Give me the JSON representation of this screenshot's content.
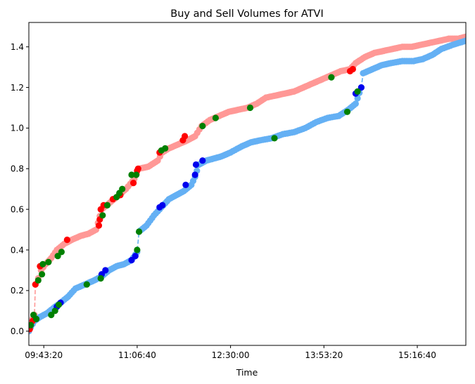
{
  "chart_data": {
    "type": "scatter",
    "title": "Buy and Sell Volumes for ATVI",
    "xlabel": "Time",
    "ylabel": "",
    "x_tick_labels": [
      "09:43:20",
      "11:06:40",
      "12:30:00",
      "13:53:20",
      "15:16:40"
    ],
    "x_tick_values_seconds": [
      35000,
      40000,
      45000,
      50000,
      55000
    ],
    "xlim_seconds": [
      34200,
      57600
    ],
    "y_ticks": [
      0.0,
      0.2,
      0.4,
      0.6,
      0.8,
      1.0,
      1.2,
      1.4
    ],
    "ylim": [
      -0.07,
      1.52
    ],
    "grid": false,
    "colors": {
      "sell_line": "#ff9896",
      "buy_line": "#64b0f4",
      "sell_large": "#ff0000",
      "buy_large": "#0000ee",
      "marked": "#008000"
    },
    "series": [
      {
        "role": "sell",
        "style": "dashed-with-markers",
        "points": [
          [
            34200,
            0.0
          ],
          [
            34300,
            0.03
          ],
          [
            34400,
            0.06
          ],
          [
            34500,
            0.08
          ],
          [
            34550,
            0.23
          ],
          [
            34700,
            0.26
          ],
          [
            34850,
            0.3
          ],
          [
            35100,
            0.33
          ],
          [
            35400,
            0.36
          ],
          [
            35700,
            0.4
          ],
          [
            36100,
            0.43
          ],
          [
            36500,
            0.45
          ],
          [
            37000,
            0.47
          ],
          [
            37400,
            0.48
          ],
          [
            37800,
            0.5
          ],
          [
            38100,
            0.6
          ],
          [
            38500,
            0.63
          ],
          [
            38900,
            0.66
          ],
          [
            39400,
            0.7
          ],
          [
            39850,
            0.75
          ],
          [
            40100,
            0.8
          ],
          [
            40600,
            0.81
          ],
          [
            41100,
            0.84
          ],
          [
            41350,
            0.88
          ],
          [
            41700,
            0.9
          ],
          [
            42200,
            0.92
          ],
          [
            42700,
            0.94
          ],
          [
            43100,
            0.96
          ],
          [
            43450,
            1.01
          ],
          [
            43900,
            1.04
          ],
          [
            44400,
            1.06
          ],
          [
            44900,
            1.08
          ],
          [
            45400,
            1.09
          ],
          [
            45900,
            1.1
          ],
          [
            46400,
            1.12
          ],
          [
            46900,
            1.15
          ],
          [
            47400,
            1.16
          ],
          [
            47900,
            1.17
          ],
          [
            48400,
            1.18
          ],
          [
            48900,
            1.2
          ],
          [
            49400,
            1.22
          ],
          [
            49900,
            1.24
          ],
          [
            50400,
            1.26
          ],
          [
            50900,
            1.28
          ],
          [
            51400,
            1.29
          ],
          [
            51700,
            1.32
          ],
          [
            52200,
            1.35
          ],
          [
            52700,
            1.37
          ],
          [
            53200,
            1.38
          ],
          [
            53700,
            1.39
          ],
          [
            54200,
            1.4
          ],
          [
            54700,
            1.4
          ],
          [
            55200,
            1.41
          ],
          [
            55700,
            1.42
          ],
          [
            56200,
            1.43
          ],
          [
            56700,
            1.44
          ],
          [
            57200,
            1.44
          ],
          [
            57600,
            1.45
          ]
        ]
      },
      {
        "role": "buy",
        "style": "dashed-with-markers",
        "points": [
          [
            34200,
            0.0
          ],
          [
            34300,
            0.02
          ],
          [
            34500,
            0.05
          ],
          [
            34800,
            0.07
          ],
          [
            35200,
            0.09
          ],
          [
            35600,
            0.12
          ],
          [
            35900,
            0.14
          ],
          [
            36300,
            0.17
          ],
          [
            36700,
            0.21
          ],
          [
            37200,
            0.23
          ],
          [
            37700,
            0.25
          ],
          [
            38100,
            0.27
          ],
          [
            38500,
            0.3
          ],
          [
            38900,
            0.32
          ],
          [
            39300,
            0.33
          ],
          [
            39700,
            0.35
          ],
          [
            40000,
            0.39
          ],
          [
            40100,
            0.49
          ],
          [
            40500,
            0.52
          ],
          [
            40900,
            0.57
          ],
          [
            41300,
            0.61
          ],
          [
            41700,
            0.65
          ],
          [
            42100,
            0.67
          ],
          [
            42500,
            0.69
          ],
          [
            42900,
            0.72
          ],
          [
            43100,
            0.76
          ],
          [
            43300,
            0.82
          ],
          [
            43700,
            0.84
          ],
          [
            44100,
            0.85
          ],
          [
            44500,
            0.86
          ],
          [
            45000,
            0.88
          ],
          [
            45600,
            0.91
          ],
          [
            46100,
            0.93
          ],
          [
            46600,
            0.94
          ],
          [
            47200,
            0.95
          ],
          [
            47800,
            0.97
          ],
          [
            48400,
            0.98
          ],
          [
            49000,
            1.0
          ],
          [
            49600,
            1.03
          ],
          [
            50200,
            1.05
          ],
          [
            50800,
            1.06
          ],
          [
            51300,
            1.09
          ],
          [
            51700,
            1.12
          ],
          [
            52000,
            1.2
          ],
          [
            52100,
            1.27
          ],
          [
            52600,
            1.29
          ],
          [
            53100,
            1.31
          ],
          [
            53600,
            1.32
          ],
          [
            54200,
            1.33
          ],
          [
            54800,
            1.33
          ],
          [
            55300,
            1.34
          ],
          [
            55800,
            1.36
          ],
          [
            56300,
            1.39
          ],
          [
            56900,
            1.41
          ],
          [
            57600,
            1.43
          ]
        ]
      }
    ],
    "highlight_points": {
      "sell_large": [
        [
          34250,
          0.01
        ],
        [
          34400,
          0.05
        ],
        [
          34550,
          0.23
        ],
        [
          34800,
          0.32
        ],
        [
          36250,
          0.45
        ],
        [
          37950,
          0.52
        ],
        [
          38000,
          0.55
        ],
        [
          38050,
          0.6
        ],
        [
          38200,
          0.62
        ],
        [
          38700,
          0.65
        ],
        [
          39100,
          0.67
        ],
        [
          39800,
          0.73
        ],
        [
          40000,
          0.79
        ],
        [
          40050,
          0.8
        ],
        [
          41200,
          0.88
        ],
        [
          42450,
          0.94
        ],
        [
          42550,
          0.96
        ],
        [
          51400,
          1.28
        ],
        [
          51550,
          1.29
        ]
      ],
      "buy_large": [
        [
          35700,
          0.12
        ],
        [
          35900,
          0.14
        ],
        [
          38100,
          0.28
        ],
        [
          38300,
          0.3
        ],
        [
          39700,
          0.35
        ],
        [
          39900,
          0.37
        ],
        [
          41200,
          0.61
        ],
        [
          41350,
          0.62
        ],
        [
          42600,
          0.72
        ],
        [
          43100,
          0.77
        ],
        [
          43150,
          0.82
        ],
        [
          43500,
          0.84
        ],
        [
          51700,
          1.17
        ],
        [
          52000,
          1.2
        ]
      ],
      "marked": [
        [
          34300,
          0.03
        ],
        [
          34450,
          0.08
        ],
        [
          34600,
          0.06
        ],
        [
          34700,
          0.25
        ],
        [
          34900,
          0.28
        ],
        [
          34950,
          0.33
        ],
        [
          35250,
          0.34
        ],
        [
          35400,
          0.08
        ],
        [
          35600,
          0.1
        ],
        [
          35800,
          0.13
        ],
        [
          35750,
          0.37
        ],
        [
          35950,
          0.39
        ],
        [
          37300,
          0.23
        ],
        [
          38050,
          0.26
        ],
        [
          38150,
          0.57
        ],
        [
          38400,
          0.62
        ],
        [
          38900,
          0.66
        ],
        [
          39050,
          0.68
        ],
        [
          39200,
          0.7
        ],
        [
          39700,
          0.77
        ],
        [
          39950,
          0.77
        ],
        [
          40000,
          0.4
        ],
        [
          40100,
          0.49
        ],
        [
          41300,
          0.89
        ],
        [
          41500,
          0.9
        ],
        [
          43500,
          1.01
        ],
        [
          44200,
          1.05
        ],
        [
          46050,
          1.1
        ],
        [
          47350,
          0.95
        ],
        [
          50400,
          1.25
        ],
        [
          51250,
          1.08
        ],
        [
          51800,
          1.18
        ]
      ]
    }
  }
}
